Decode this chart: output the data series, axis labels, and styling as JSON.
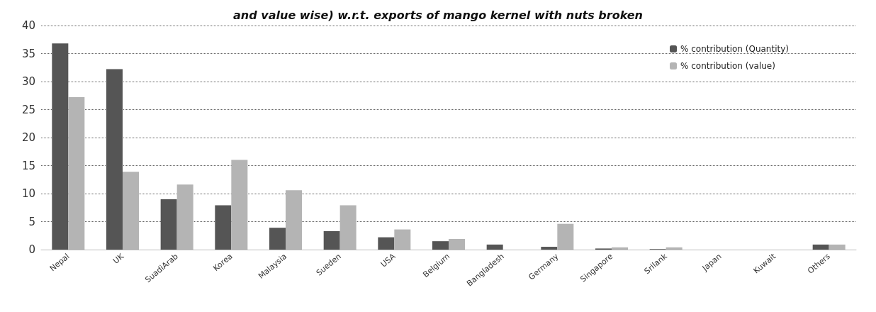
{
  "chart_data": {
    "type": "bar",
    "title": "and value wise) w.r.t. exports of mango kernel with nuts broken",
    "categories": [
      "Nepal",
      "UK",
      "SuadiArab",
      "Korea",
      "Malaysia",
      "Sueden",
      "USA",
      "Belgium",
      "Bangladesh",
      "Germany",
      "Singapore",
      "Srilank",
      "Japan",
      "Kuwait",
      "Others"
    ],
    "series": [
      {
        "name": "% contribution (Quantity)",
        "color": "#555555",
        "values": [
          36.8,
          32.2,
          9,
          7.9,
          3.9,
          3.3,
          2.2,
          1.5,
          0.9,
          0.5,
          0.2,
          0.1,
          0,
          0,
          0.9
        ]
      },
      {
        "name": "% contribution (value)",
        "color": "#b4b4b4",
        "values": [
          27.2,
          13.9,
          11.6,
          16,
          10.6,
          7.9,
          3.6,
          1.9,
          0,
          4.6,
          0.4,
          0.4,
          0,
          0,
          0.9
        ]
      }
    ],
    "ylim": [
      0,
      40
    ],
    "yticks": [
      0,
      5,
      10,
      15,
      20,
      25,
      30,
      35,
      40
    ],
    "grid": "y",
    "legend": "top right"
  }
}
